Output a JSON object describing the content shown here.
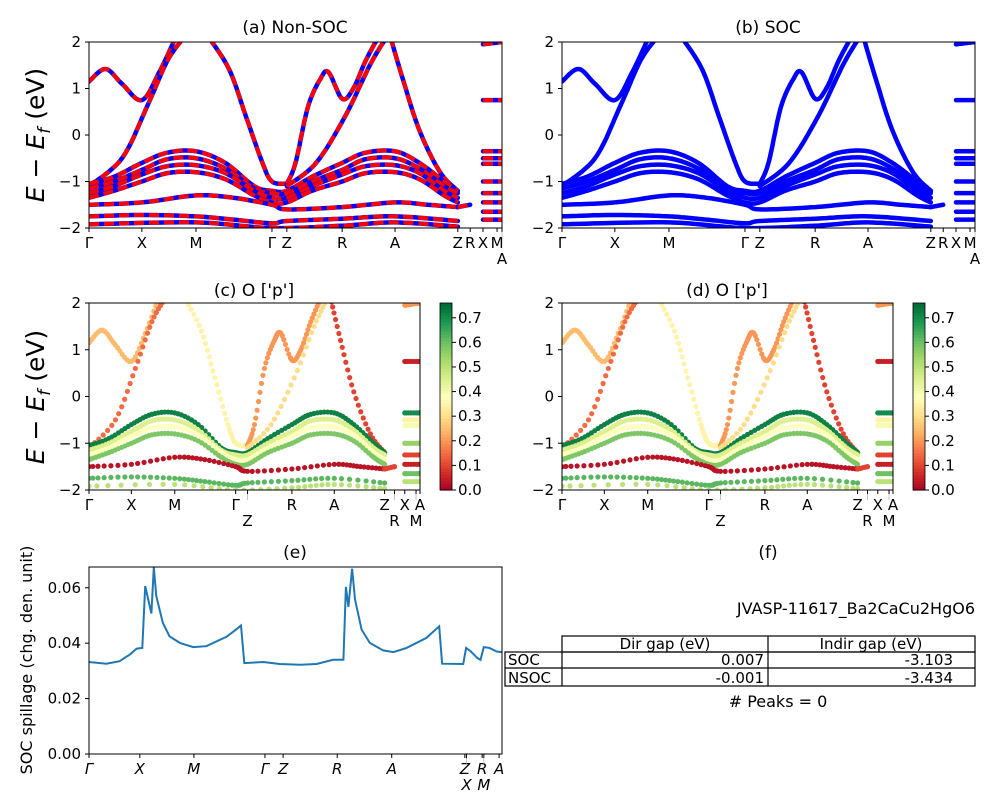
{
  "figure": {
    "band_ylabel": {
      "main": "E − E",
      "sub": "f",
      "unit": " (eV)"
    },
    "spillage_ylabel": "SOC spillage (chg. den. unit)"
  },
  "chart_data": [
    {
      "id": "a",
      "type": "line",
      "title": "(a) Non-SOC",
      "ylim": [
        -2,
        2
      ],
      "yticks": [
        "2",
        "1",
        "0",
        "−1",
        "−2"
      ],
      "ytick_values": [
        2,
        1,
        0,
        -1,
        -2
      ],
      "xticks": [
        {
          "label": "Γ",
          "k": 0
        },
        {
          "label": "X",
          "k": 12.8
        },
        {
          "label": "M",
          "k": 25.9
        },
        {
          "label": "Γ",
          "k": 44.3
        },
        {
          "label": "Z",
          "k": 47.9
        },
        {
          "label": "R",
          "k": 61.3
        },
        {
          "label": "A",
          "k": 74.1
        },
        {
          "label": "Z",
          "k": 89.3
        },
        {
          "label": "R",
          "k": 92.3
        },
        {
          "label": "X",
          "k": 95.4
        },
        {
          "label": "M",
          "k": 98.8
        },
        {
          "label": "A",
          "k": 100
        }
      ],
      "series_colors": {
        "soc": "#0000ff",
        "non_soc": "#ff0000"
      },
      "bands": [
        {
          "w": 0.25,
          "pts": [
            [
              0,
              1.15
            ],
            [
              4,
              1.42
            ],
            [
              8,
              1.1
            ],
            [
              12.8,
              0.75
            ],
            [
              17,
              1.35
            ],
            [
              21,
              2.1
            ]
          ]
        },
        {
          "w": 0.35,
          "pts": [
            [
              29,
              2.1
            ],
            [
              34,
              1.4
            ],
            [
              38,
              0.4
            ],
            [
              42,
              -0.6
            ],
            [
              44.3,
              -1.0
            ],
            [
              47.9,
              -1.05
            ]
          ]
        },
        {
          "w": 0.2,
          "pts": [
            [
              47.9,
              -1.05
            ],
            [
              50,
              -0.6
            ],
            [
              53,
              0.6
            ],
            [
              56,
              1.2
            ],
            [
              58,
              1.35
            ],
            [
              61.3,
              0.78
            ],
            [
              64,
              1.0
            ],
            [
              67,
              1.6
            ],
            [
              70,
              2.1
            ]
          ]
        },
        {
          "w": 0.15,
          "pts": [
            [
              0,
              -1.1
            ],
            [
              8,
              -0.5
            ],
            [
              14,
              0.6
            ],
            [
              19,
              1.6
            ],
            [
              23,
              2.1
            ]
          ]
        },
        {
          "w": 0.1,
          "pts": [
            [
              73,
              2.1
            ],
            [
              76,
              1.2
            ],
            [
              80,
              0.1
            ],
            [
              85,
              -0.8
            ],
            [
              89.3,
              -1.2
            ]
          ]
        },
        {
          "w": 0.3,
          "pts": [
            [
              47.9,
              -1.1
            ],
            [
              55,
              -0.6
            ],
            [
              62,
              0.4
            ],
            [
              68,
              1.5
            ],
            [
              72,
              2.1
            ]
          ]
        },
        {
          "w": 0.72,
          "pts": [
            [
              0,
              -1.05
            ],
            [
              6,
              -0.9
            ],
            [
              12.8,
              -0.6
            ],
            [
              19,
              -0.38
            ],
            [
              25.9,
              -0.35
            ],
            [
              33,
              -0.6
            ],
            [
              40,
              -1.1
            ],
            [
              44.3,
              -1.2
            ],
            [
              47.9,
              -1.2
            ],
            [
              54,
              -0.9
            ],
            [
              61.3,
              -0.6
            ],
            [
              67,
              -0.38
            ],
            [
              74.1,
              -0.35
            ],
            [
              80,
              -0.6
            ],
            [
              86,
              -1.0
            ],
            [
              89.3,
              -1.2
            ]
          ]
        },
        {
          "w": 0.45,
          "pts": [
            [
              0,
              -1.15
            ],
            [
              6,
              -1.0
            ],
            [
              12.8,
              -0.75
            ],
            [
              19,
              -0.52
            ],
            [
              25.9,
              -0.5
            ],
            [
              33,
              -0.72
            ],
            [
              40,
              -1.15
            ],
            [
              44.3,
              -1.25
            ],
            [
              47.9,
              -1.25
            ],
            [
              54,
              -1.0
            ],
            [
              61.3,
              -0.75
            ],
            [
              67,
              -0.52
            ],
            [
              74.1,
              -0.5
            ],
            [
              80,
              -0.72
            ],
            [
              86,
              -1.1
            ],
            [
              89.3,
              -1.25
            ]
          ]
        },
        {
          "w": 0.38,
          "pts": [
            [
              0,
              -1.25
            ],
            [
              6,
              -1.1
            ],
            [
              12.8,
              -0.85
            ],
            [
              19,
              -0.67
            ],
            [
              25.9,
              -0.65
            ],
            [
              33,
              -0.82
            ],
            [
              40,
              -1.2
            ],
            [
              44.3,
              -1.35
            ],
            [
              47.9,
              -1.35
            ],
            [
              54,
              -1.1
            ],
            [
              61.3,
              -0.85
            ],
            [
              67,
              -0.67
            ],
            [
              74.1,
              -0.65
            ],
            [
              80,
              -0.82
            ],
            [
              86,
              -1.2
            ],
            [
              89.3,
              -1.35
            ]
          ]
        },
        {
          "w": 0.58,
          "pts": [
            [
              0,
              -1.35
            ],
            [
              6,
              -1.2
            ],
            [
              12.8,
              -1.0
            ],
            [
              19,
              -0.82
            ],
            [
              25.9,
              -0.8
            ],
            [
              33,
              -0.95
            ],
            [
              40,
              -1.3
            ],
            [
              44.3,
              -1.45
            ],
            [
              47.9,
              -1.45
            ],
            [
              54,
              -1.2
            ],
            [
              61.3,
              -1.0
            ],
            [
              67,
              -0.82
            ],
            [
              74.1,
              -0.8
            ],
            [
              80,
              -0.95
            ],
            [
              86,
              -1.3
            ],
            [
              89.3,
              -1.45
            ]
          ]
        },
        {
          "w": 0.03,
          "pts": [
            [
              0,
              -1.5
            ],
            [
              12.8,
              -1.45
            ],
            [
              25.9,
              -1.3
            ],
            [
              35,
              -1.35
            ],
            [
              44.3,
              -1.5
            ],
            [
              47.9,
              -1.6
            ],
            [
              61.3,
              -1.55
            ],
            [
              74.1,
              -1.45
            ],
            [
              82,
              -1.5
            ],
            [
              89.3,
              -1.55
            ]
          ]
        },
        {
          "w": 0.62,
          "pts": [
            [
              0,
              -1.75
            ],
            [
              12.8,
              -1.72
            ],
            [
              25.9,
              -1.75
            ],
            [
              35,
              -1.82
            ],
            [
              44.3,
              -1.9
            ],
            [
              47.9,
              -1.85
            ],
            [
              61.3,
              -1.8
            ],
            [
              74.1,
              -1.75
            ],
            [
              89.3,
              -1.85
            ]
          ]
        },
        {
          "w": 0.5,
          "pts": [
            [
              0,
              -1.92
            ],
            [
              25.9,
              -1.88
            ],
            [
              44.3,
              -2.0
            ],
            [
              61.3,
              -1.95
            ],
            [
              74.1,
              -1.88
            ],
            [
              89.3,
              -1.97
            ]
          ]
        },
        {
          "w": 0.1,
          "pts": [
            [
              89.3,
              -1.55
            ],
            [
              92.3,
              -1.5
            ]
          ]
        },
        {
          "w": 0.2,
          "pts": [
            [
              95.4,
              1.95
            ],
            [
              100,
              2.0
            ]
          ]
        },
        {
          "w": 0.05,
          "pts": [
            [
              95.4,
              0.75
            ],
            [
              100,
              0.75
            ]
          ]
        },
        {
          "w": 0.7,
          "pts": [
            [
              95.4,
              -0.35
            ],
            [
              100,
              -0.35
            ]
          ]
        },
        {
          "w": 0.35,
          "pts": [
            [
              95.4,
              -0.5
            ],
            [
              100,
              -0.5
            ]
          ]
        },
        {
          "w": 0.4,
          "pts": [
            [
              95.4,
              -0.62
            ],
            [
              100,
              -0.62
            ]
          ]
        },
        {
          "w": 0.55,
          "pts": [
            [
              95.4,
              -1.0
            ],
            [
              100,
              -1.0
            ]
          ]
        },
        {
          "w": 0.1,
          "pts": [
            [
              95.4,
              -1.25
            ],
            [
              100,
              -1.25
            ]
          ]
        },
        {
          "w": 0.05,
          "pts": [
            [
              95.4,
              -1.45
            ],
            [
              100,
              -1.45
            ]
          ]
        },
        {
          "w": 0.6,
          "pts": [
            [
              95.4,
              -1.65
            ],
            [
              100,
              -1.65
            ]
          ]
        },
        {
          "w": 0.5,
          "pts": [
            [
              95.4,
              -1.82
            ],
            [
              100,
              -1.82
            ]
          ]
        }
      ]
    },
    {
      "id": "b",
      "type": "line",
      "title": "(b) SOC",
      "ylim": [
        -2,
        2
      ],
      "uses_bands_of": "a"
    },
    {
      "id": "c",
      "type": "scatter",
      "title": "(c)  O ['p']",
      "ylim": [
        -2,
        2
      ],
      "uses_bands_of": "a",
      "colormap": "RdYlGn",
      "clim": [
        0,
        0.76
      ],
      "colorbar_ticks": [
        "0.0",
        "0.1",
        "0.2",
        "0.3",
        "0.4",
        "0.5",
        "0.6",
        "0.7"
      ],
      "colorbar_values": [
        0,
        0.1,
        0.2,
        0.3,
        0.4,
        0.5,
        0.6,
        0.7
      ]
    },
    {
      "id": "d",
      "type": "scatter",
      "title": "(d) O ['p']",
      "ylim": [
        -2,
        2
      ],
      "uses_bands_of": "a",
      "colormap": "RdYlGn",
      "clim": [
        0,
        0.76
      ],
      "colorbar_ticks": [
        "0.0",
        "0.1",
        "0.2",
        "0.3",
        "0.4",
        "0.5",
        "0.6",
        "0.7"
      ],
      "colorbar_values": [
        0,
        0.1,
        0.2,
        0.3,
        0.4,
        0.5,
        0.6,
        0.7
      ]
    },
    {
      "id": "e",
      "type": "line",
      "title": "(e)",
      "ylabel": "SOC spillage (chg. den. unit)",
      "ylim": [
        0,
        0.0675
      ],
      "yticks": [
        "0.00",
        "0.02",
        "0.04",
        "0.06"
      ],
      "ytick_values": [
        0,
        0.02,
        0.04,
        0.06
      ],
      "color": "#1f77b4",
      "xticks": [
        {
          "label": "Γ",
          "k": 0
        },
        {
          "label": "X",
          "k": 12.3
        },
        {
          "label": "M",
          "k": 25.4
        },
        {
          "label": "Γ",
          "k": 42.6
        },
        {
          "label": "Z",
          "k": 47.0
        },
        {
          "label": "R",
          "k": 60.1
        },
        {
          "label": "A",
          "k": 73.3
        },
        {
          "label": "Z",
          "k": 91.0
        },
        {
          "label": "X",
          "k": 91.4
        },
        {
          "label": "R",
          "k": 95.2
        },
        {
          "label": "M",
          "k": 95.6
        },
        {
          "label": "A",
          "k": 99.3
        }
      ],
      "x": [
        0,
        4.2,
        7.4,
        9.9,
        11.5,
        12.9,
        13.6,
        15.1,
        15.7,
        16.3,
        17.9,
        19.5,
        22.0,
        25.2,
        28.4,
        33.3,
        35.7,
        36.8,
        37.6,
        42.2,
        46.2,
        51.1,
        55.1,
        59.1,
        61.6,
        62.2,
        62.8,
        63.7,
        64.4,
        66.0,
        68.0,
        71.2,
        73.7,
        76.9,
        81.7,
        84.8,
        85.5,
        90.6,
        91.3,
        92.4,
        94.0,
        94.8,
        95.6,
        96.9,
        98.7,
        100
      ],
      "y": [
        0.0332,
        0.0326,
        0.0335,
        0.0359,
        0.038,
        0.0383,
        0.0606,
        0.0507,
        0.0673,
        0.057,
        0.0473,
        0.0425,
        0.0401,
        0.0386,
        0.0389,
        0.0423,
        0.045,
        0.0464,
        0.0328,
        0.0332,
        0.0325,
        0.0322,
        0.0325,
        0.034,
        0.034,
        0.0603,
        0.0531,
        0.0669,
        0.0558,
        0.0449,
        0.0401,
        0.0374,
        0.0368,
        0.0383,
        0.0419,
        0.0461,
        0.0326,
        0.0325,
        0.0383,
        0.0371,
        0.0347,
        0.034,
        0.0386,
        0.0383,
        0.037,
        0.0368
      ]
    },
    {
      "id": "f",
      "type": "table",
      "title": "(f)",
      "caption": "JVASP-11617_Ba2CaCu2HgO6",
      "columns": [
        "Dir gap (eV)",
        "Indir gap (eV)"
      ],
      "rows": [
        {
          "label": "SOC",
          "values": [
            "0.007",
            "-3.103"
          ]
        },
        {
          "label": "NSOC",
          "values": [
            "-0.001",
            "-3.434"
          ]
        }
      ],
      "footer": "# Peaks = 0"
    }
  ]
}
